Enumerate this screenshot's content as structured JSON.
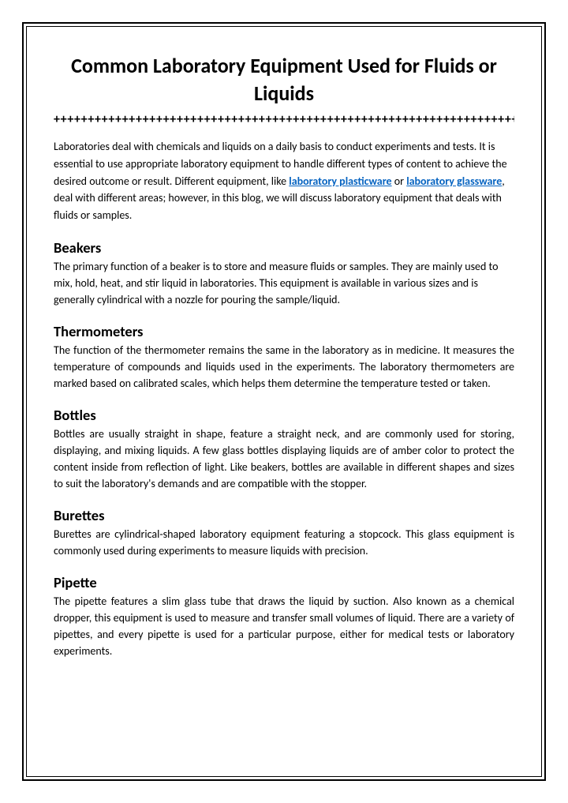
{
  "title": "Common Laboratory Equipment Used for Fluids or Liquids",
  "divider": "++++++++++++++++++++++++++++++++++++++++++++++++++++++++++++++++++++",
  "intro": {
    "pre": "Laboratories deal with chemicals and liquids on a daily basis to conduct experiments and tests. It is essential to use appropriate laboratory equipment to handle different types of content to achieve the desired outcome or result. Different equipment, like ",
    "link1": "laboratory plasticware",
    "mid": " or ",
    "link2": "laboratory glassware",
    "post": ", deal with different areas; however, in this blog, we will discuss laboratory equipment that deals with fluids or samples."
  },
  "sections": [
    {
      "heading": "Beakers",
      "align": "left",
      "body": "The primary function of a beaker is to store and measure fluids or samples. They are mainly used to mix, hold, heat, and stir liquid in laboratories. This equipment is available in various sizes and is generally cylindrical with a nozzle for pouring the sample/liquid."
    },
    {
      "heading": "Thermometers",
      "align": "justify",
      "body": "The function of the thermometer remains the same in the laboratory as in medicine. It measures the temperature of compounds and liquids used in the experiments. The laboratory thermometers are marked based on calibrated scales, which helps them determine the temperature tested or taken."
    },
    {
      "heading": "Bottles",
      "align": "justify",
      "body": "Bottles are usually straight in shape, feature a straight neck, and are commonly used for storing, displaying, and mixing liquids. A few glass bottles displaying liquids are of amber color to protect the content inside from reflection of light. Like beakers, bottles are available in different shapes and sizes to suit the laboratory's demands and are compatible with the stopper."
    },
    {
      "heading": "Burettes",
      "align": "justify",
      "body": "Burettes are cylindrical-shaped laboratory equipment featuring a stopcock. This glass equipment is commonly used during experiments to measure liquids with precision."
    },
    {
      "heading": "Pipette",
      "align": "justify",
      "body": "The pipette features a slim glass tube that draws the liquid by suction. Also known as a chemical dropper, this equipment is used to measure and transfer small volumes of liquid. There are a variety of pipettes, and every pipette is used for a particular purpose, either for medical tests or laboratory experiments."
    }
  ],
  "colors": {
    "link": "#0563c1",
    "text": "#000000",
    "background": "#ffffff",
    "border": "#000000"
  },
  "typography": {
    "title_fontsize": 26,
    "heading_fontsize": 18.5,
    "body_fontsize": 14,
    "font_family": "Calibri"
  }
}
